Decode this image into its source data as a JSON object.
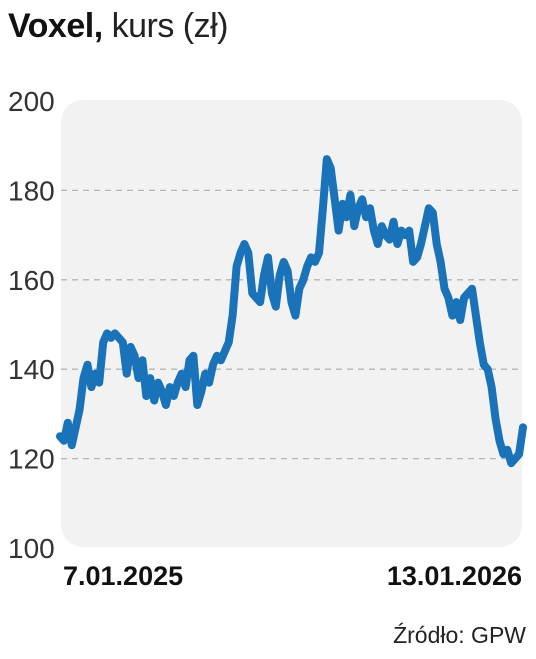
{
  "title": {
    "name": "Voxel,",
    "unit": "kurs (zł)"
  },
  "source": "Źródło: GPW",
  "colors": {
    "line": "#1a72b8",
    "panel": "#f2f2f2",
    "grid": "#b5b5b5",
    "text": "#111111"
  },
  "chart_data": {
    "type": "line",
    "title": "Voxel, kurs (zł)",
    "xlabel": "",
    "ylabel": "",
    "ylim": [
      100,
      200
    ],
    "yticks": [
      100,
      120,
      140,
      160,
      180,
      200
    ],
    "grid": "horizontal dashed",
    "x_tick_labels": [
      "7.01.2025",
      "13.01.2026"
    ],
    "series": [
      {
        "values": [
          125,
          124,
          128,
          123,
          127,
          131,
          138,
          141,
          136,
          139,
          137,
          146,
          148,
          147,
          148,
          147,
          146,
          139,
          145,
          143,
          138,
          142,
          134,
          138,
          133,
          137,
          135,
          132,
          136,
          134,
          137,
          139,
          136,
          142,
          143,
          132,
          135,
          139,
          137,
          141,
          143,
          142,
          144,
          146,
          152,
          163,
          166,
          168,
          166,
          157,
          156,
          155,
          161,
          165,
          157,
          154,
          161,
          164,
          162,
          155,
          152,
          158,
          160,
          163,
          165,
          164,
          166,
          176,
          187,
          185,
          178,
          171,
          177,
          174,
          179,
          172,
          176,
          178,
          174,
          176,
          171,
          168,
          172,
          170,
          169,
          173,
          168,
          171,
          170,
          171,
          164,
          165,
          168,
          172,
          176,
          175,
          168,
          164,
          158,
          156,
          152,
          155,
          151,
          156,
          157,
          158,
          152,
          146,
          141,
          140,
          136,
          129,
          124,
          121,
          122,
          119,
          120,
          121,
          127
        ]
      }
    ]
  }
}
